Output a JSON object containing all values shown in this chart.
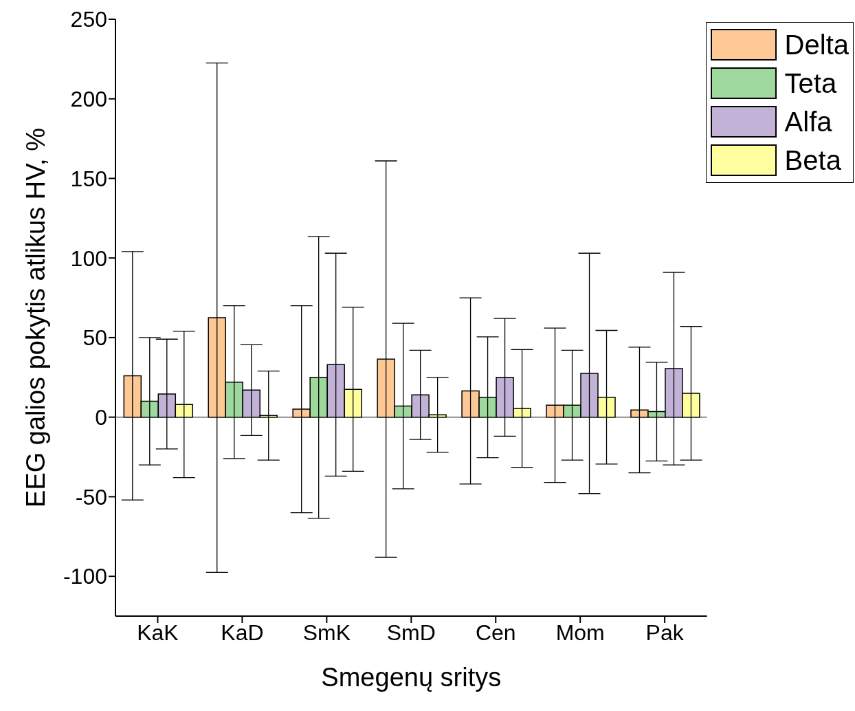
{
  "chart_data": {
    "type": "bar",
    "xlabel": "Smegenų sritys",
    "ylabel": "EEG galios pokytis atlikus HV, %",
    "categories": [
      "KaK",
      "KaD",
      "SmK",
      "SmD",
      "Cen",
      "Mom",
      "Pak"
    ],
    "series": [
      {
        "name": "Delta",
        "color": "#fdc894",
        "values": [
          26,
          62.5,
          5,
          36.5,
          16.5,
          7.5,
          4.5
        ],
        "errors": [
          78,
          160,
          65,
          124.5,
          58.5,
          48.5,
          39.5
        ]
      },
      {
        "name": "Teta",
        "color": "#9fd89d",
        "values": [
          10,
          22,
          25,
          7,
          12.5,
          7.5,
          3.5
        ],
        "errors": [
          40,
          48,
          88.5,
          52,
          38,
          34.5,
          31
        ]
      },
      {
        "name": "Alfa",
        "color": "#c3b2d7",
        "values": [
          14.5,
          17,
          33,
          14,
          25,
          27.5,
          30.5
        ],
        "errors": [
          34.5,
          28.5,
          70,
          28,
          37,
          75.5,
          60.5
        ]
      },
      {
        "name": "Beta",
        "color": "#fffe9f",
        "values": [
          8,
          1,
          17.5,
          1.5,
          5.5,
          12.5,
          15
        ],
        "errors": [
          46,
          28,
          51.5,
          23.5,
          37,
          42,
          42
        ]
      }
    ],
    "ylim": [
      -125,
      250
    ],
    "yticks": [
      -100,
      -50,
      0,
      50,
      100,
      150,
      200,
      250
    ],
    "ref_lines": [
      {
        "axis": "y",
        "value": 0,
        "color": "#000000"
      }
    ],
    "grid": false,
    "legend": "top right"
  }
}
